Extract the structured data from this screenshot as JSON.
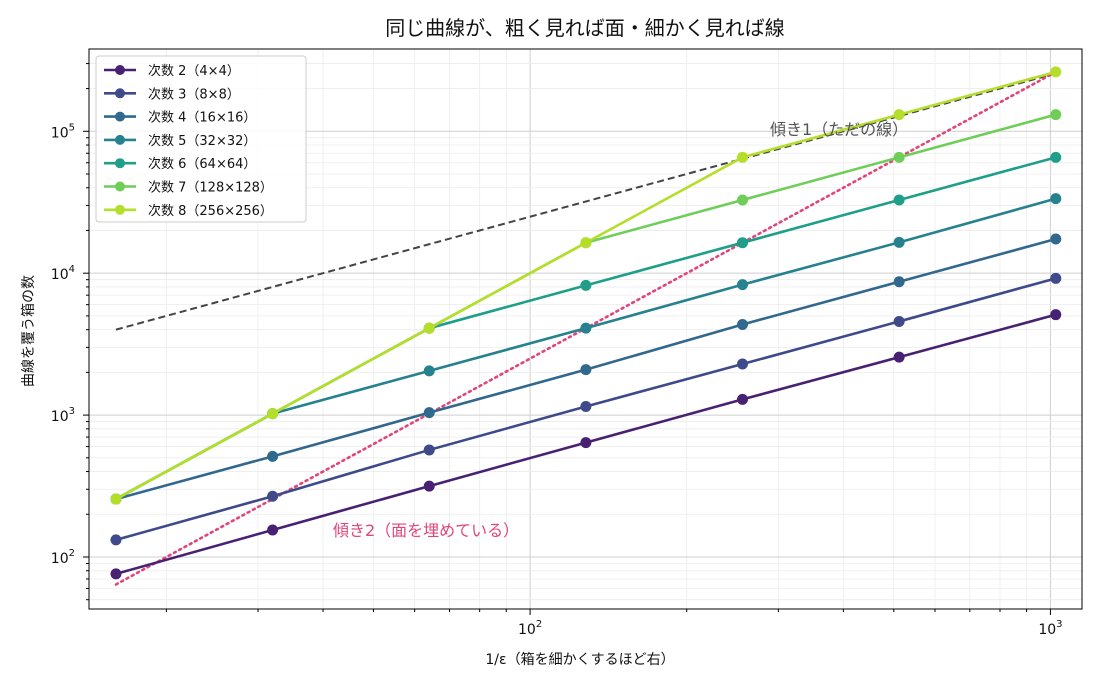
{
  "chart_data": {
    "type": "line",
    "title": "同じ曲線が、粗く見れば面・細かく見れば線",
    "xlabel": "1/ε（箱を細かくするほど右）",
    "ylabel": "曲線を覆う箱の数",
    "xscale": "log",
    "yscale": "log",
    "xlim": [
      14.2,
      1150
    ],
    "ylim": [
      43,
      380000
    ],
    "grid": true,
    "legend_position": "top-left",
    "x": [
      16,
      32,
      64,
      128,
      256,
      512,
      1024
    ],
    "x_ticks": [
      {
        "value": 100,
        "base": "10",
        "exp": "2"
      },
      {
        "value": 1000,
        "base": "10",
        "exp": "3"
      }
    ],
    "y_ticks": [
      {
        "value": 100,
        "base": "10",
        "exp": "2"
      },
      {
        "value": 1000,
        "base": "10",
        "exp": "3"
      },
      {
        "value": 10000,
        "base": "10",
        "exp": "4"
      },
      {
        "value": 100000,
        "base": "10",
        "exp": "5"
      }
    ],
    "series": [
      {
        "name": "次数 2（4×4）",
        "color": "#482173",
        "values": [
          76,
          155,
          316,
          640,
          1290,
          2560,
          5100
        ]
      },
      {
        "name": "次数 3（8×8）",
        "color": "#3e4a89",
        "values": [
          132,
          268,
          568,
          1150,
          2290,
          4570,
          9200
        ]
      },
      {
        "name": "次数 4（16×16）",
        "color": "#31688e",
        "values": [
          256,
          512,
          1040,
          2090,
          4350,
          8700,
          17400
        ]
      },
      {
        "name": "次数 5（32×32）",
        "color": "#26828e",
        "values": [
          256,
          1024,
          2050,
          4100,
          8300,
          16500,
          33500
        ]
      },
      {
        "name": "次数 6（64×64）",
        "color": "#1f9e89",
        "values": [
          256,
          1024,
          4096,
          8200,
          16400,
          32800,
          65500
        ]
      },
      {
        "name": "次数 7（128×128）",
        "color": "#6ece58",
        "values": [
          256,
          1024,
          4096,
          16384,
          32800,
          65500,
          131000
        ]
      },
      {
        "name": "次数 8（256×256）",
        "color": "#b5de2b",
        "values": [
          256,
          1024,
          4096,
          16384,
          65536,
          131072,
          262144
        ]
      }
    ],
    "reference_lines": [
      {
        "label": "傾き1（ただの線）",
        "color": "#444444",
        "dash": "dashed",
        "x": [
          16,
          1024
        ],
        "y": [
          4000,
          256000
        ]
      },
      {
        "label": "傾き2（面を埋めている）",
        "color": "#e0457b",
        "dash": "dotted",
        "x": [
          16,
          1024
        ],
        "y": [
          64,
          262144
        ]
      }
    ]
  }
}
